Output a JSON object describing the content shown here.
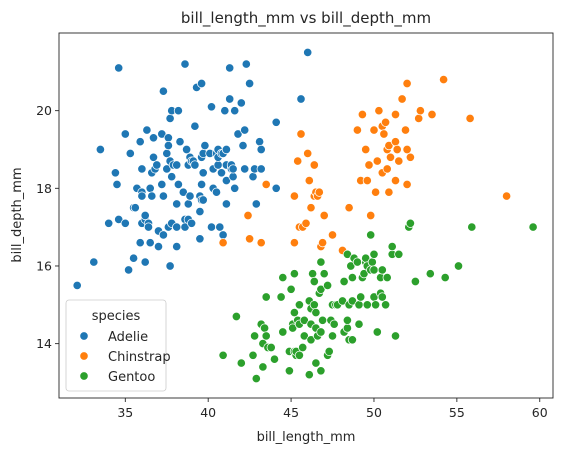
{
  "chart_data": {
    "type": "scatter",
    "title": "bill_length_mm vs bill_depth_mm",
    "xlabel": "bill_length_mm",
    "ylabel": "bill_depth_mm",
    "xlim": [
      31.0,
      60.8
    ],
    "ylim": [
      12.6,
      22.0
    ],
    "xticks": [
      35,
      40,
      45,
      50,
      55,
      60
    ],
    "yticks": [
      14,
      16,
      18,
      20
    ],
    "grid": false,
    "legend": {
      "title": "species",
      "placement": "lower-left"
    },
    "series": [
      {
        "name": "Adelie",
        "color": "#1f77b4",
        "points": [
          [
            32.1,
            15.5
          ],
          [
            33.1,
            16.1
          ],
          [
            33.5,
            19.0
          ],
          [
            34.0,
            17.1
          ],
          [
            34.4,
            18.4
          ],
          [
            34.5,
            18.1
          ],
          [
            34.6,
            21.1
          ],
          [
            34.6,
            17.2
          ],
          [
            35.0,
            17.1
          ],
          [
            35.0,
            19.4
          ],
          [
            35.2,
            15.9
          ],
          [
            35.3,
            18.9
          ],
          [
            35.5,
            17.5
          ],
          [
            35.5,
            16.2
          ],
          [
            35.6,
            17.5
          ],
          [
            35.7,
            18.0
          ],
          [
            35.9,
            16.6
          ],
          [
            35.9,
            19.2
          ],
          [
            36.0,
            17.9
          ],
          [
            36.0,
            17.1
          ],
          [
            36.0,
            18.5
          ],
          [
            36.0,
            17.8
          ],
          [
            36.2,
            16.1
          ],
          [
            36.2,
            17.2
          ],
          [
            36.2,
            17.3
          ],
          [
            36.3,
            19.5
          ],
          [
            36.4,
            17.1
          ],
          [
            36.4,
            17.0
          ],
          [
            36.5,
            16.6
          ],
          [
            36.5,
            18.0
          ],
          [
            36.6,
            17.8
          ],
          [
            36.6,
            18.4
          ],
          [
            36.7,
            18.8
          ],
          [
            36.7,
            19.3
          ],
          [
            36.8,
            18.5
          ],
          [
            36.9,
            18.6
          ],
          [
            37.0,
            16.9
          ],
          [
            37.0,
            16.5
          ],
          [
            37.2,
            18.1
          ],
          [
            37.2,
            19.4
          ],
          [
            37.3,
            20.5
          ],
          [
            37.3,
            17.8
          ],
          [
            37.3,
            16.8
          ],
          [
            37.5,
            18.9
          ],
          [
            37.5,
            18.5
          ],
          [
            37.6,
            19.3
          ],
          [
            37.6,
            17.0
          ],
          [
            37.6,
            19.1
          ],
          [
            37.7,
            18.7
          ],
          [
            37.7,
            16.0
          ],
          [
            37.7,
            19.8
          ],
          [
            37.8,
            18.3
          ],
          [
            37.8,
            17.1
          ],
          [
            37.8,
            20.0
          ],
          [
            37.9,
            18.6
          ],
          [
            38.1,
            18.6
          ],
          [
            38.1,
            17.6
          ],
          [
            38.1,
            17.0
          ],
          [
            38.1,
            16.5
          ],
          [
            38.2,
            18.1
          ],
          [
            38.2,
            20.0
          ],
          [
            38.3,
            19.2
          ],
          [
            38.5,
            17.9
          ],
          [
            38.6,
            21.2
          ],
          [
            38.6,
            17.2
          ],
          [
            38.6,
            17.0
          ],
          [
            38.7,
            19.0
          ],
          [
            38.8,
            17.2
          ],
          [
            38.8,
            18.6
          ],
          [
            38.8,
            17.6
          ],
          [
            38.9,
            18.8
          ],
          [
            38.9,
            17.8
          ],
          [
            39.0,
            17.1
          ],
          [
            39.0,
            18.7
          ],
          [
            39.1,
            18.7
          ],
          [
            39.2,
            19.6
          ],
          [
            39.2,
            18.6
          ],
          [
            39.3,
            20.6
          ],
          [
            39.5,
            17.4
          ],
          [
            39.5,
            16.7
          ],
          [
            39.5,
            17.8
          ],
          [
            39.6,
            18.8
          ],
          [
            39.6,
            17.7
          ],
          [
            39.6,
            18.1
          ],
          [
            39.6,
            20.7
          ],
          [
            39.7,
            18.4
          ],
          [
            39.7,
            17.7
          ],
          [
            39.7,
            18.9
          ],
          [
            39.8,
            19.1
          ],
          [
            40.1,
            18.9
          ],
          [
            40.2,
            17.0
          ],
          [
            40.2,
            20.1
          ],
          [
            40.3,
            18.0
          ],
          [
            40.3,
            18.5
          ],
          [
            40.5,
            17.9
          ],
          [
            40.5,
            18.9
          ],
          [
            40.6,
            18.6
          ],
          [
            40.6,
            19.0
          ],
          [
            40.6,
            18.8
          ],
          [
            40.7,
            17.0
          ],
          [
            40.8,
            18.4
          ],
          [
            40.8,
            18.9
          ],
          [
            40.9,
            16.8
          ],
          [
            40.9,
            18.9
          ],
          [
            41.0,
            20.0
          ],
          [
            41.1,
            17.6
          ],
          [
            41.1,
            19.0
          ],
          [
            41.1,
            18.2
          ],
          [
            41.1,
            18.6
          ],
          [
            41.3,
            20.3
          ],
          [
            41.3,
            21.1
          ],
          [
            41.4,
            18.5
          ],
          [
            41.4,
            18.6
          ],
          [
            41.5,
            18.3
          ],
          [
            41.5,
            18.5
          ],
          [
            41.6,
            18.0
          ],
          [
            41.6,
            20.0
          ],
          [
            41.8,
            19.4
          ],
          [
            42.0,
            20.2
          ],
          [
            42.1,
            19.1
          ],
          [
            42.2,
            18.5
          ],
          [
            42.2,
            19.5
          ],
          [
            42.3,
            21.2
          ],
          [
            42.5,
            20.7
          ],
          [
            42.7,
            18.3
          ],
          [
            42.8,
            18.5
          ],
          [
            42.9,
            17.6
          ],
          [
            43.1,
            19.2
          ],
          [
            43.2,
            18.5
          ],
          [
            43.2,
            19.0
          ],
          [
            44.1,
            19.7
          ],
          [
            44.1,
            18.0
          ],
          [
            45.6,
            20.3
          ],
          [
            46.0,
            21.5
          ]
        ]
      },
      {
        "name": "Chinstrap",
        "color": "#ff7f0e",
        "points": [
          [
            40.9,
            16.6
          ],
          [
            42.4,
            17.3
          ],
          [
            42.5,
            16.7
          ],
          [
            43.2,
            16.6
          ],
          [
            43.5,
            18.1
          ],
          [
            45.2,
            17.8
          ],
          [
            45.2,
            16.6
          ],
          [
            45.4,
            18.7
          ],
          [
            45.5,
            17.0
          ],
          [
            45.6,
            19.4
          ],
          [
            45.7,
            17.0
          ],
          [
            45.9,
            17.1
          ],
          [
            46.0,
            18.9
          ],
          [
            46.1,
            18.2
          ],
          [
            46.2,
            17.5
          ],
          [
            46.4,
            18.6
          ],
          [
            46.4,
            17.8
          ],
          [
            46.5,
            17.9
          ],
          [
            46.6,
            17.8
          ],
          [
            46.7,
            17.9
          ],
          [
            46.8,
            16.5
          ],
          [
            46.9,
            16.6
          ],
          [
            47.0,
            17.3
          ],
          [
            47.5,
            16.8
          ],
          [
            48.1,
            16.4
          ],
          [
            48.5,
            17.5
          ],
          [
            49.0,
            19.5
          ],
          [
            49.2,
            18.2
          ],
          [
            49.3,
            19.9
          ],
          [
            49.5,
            19.0
          ],
          [
            49.6,
            18.2
          ],
          [
            49.7,
            18.6
          ],
          [
            49.8,
            17.3
          ],
          [
            50.0,
            19.5
          ],
          [
            50.1,
            17.9
          ],
          [
            50.2,
            18.7
          ],
          [
            50.3,
            20.0
          ],
          [
            50.5,
            18.4
          ],
          [
            50.5,
            19.6
          ],
          [
            50.6,
            19.4
          ],
          [
            50.7,
            19.7
          ],
          [
            50.8,
            18.5
          ],
          [
            50.8,
            19.0
          ],
          [
            50.9,
            19.1
          ],
          [
            50.9,
            17.9
          ],
          [
            51.0,
            18.8
          ],
          [
            51.3,
            19.2
          ],
          [
            51.3,
            18.2
          ],
          [
            51.3,
            19.9
          ],
          [
            51.4,
            19.0
          ],
          [
            51.5,
            18.7
          ],
          [
            51.7,
            20.3
          ],
          [
            51.9,
            19.5
          ],
          [
            52.0,
            18.1
          ],
          [
            52.0,
            19.0
          ],
          [
            52.0,
            20.7
          ],
          [
            52.2,
            18.8
          ],
          [
            52.7,
            19.8
          ],
          [
            52.8,
            20.0
          ],
          [
            53.5,
            19.9
          ],
          [
            54.2,
            20.8
          ],
          [
            55.8,
            19.8
          ],
          [
            58.0,
            17.8
          ]
        ]
      },
      {
        "name": "Gentoo",
        "color": "#2ca02c",
        "points": [
          [
            40.9,
            13.7
          ],
          [
            41.7,
            14.7
          ],
          [
            42.0,
            13.5
          ],
          [
            42.7,
            13.7
          ],
          [
            42.8,
            14.2
          ],
          [
            42.9,
            13.1
          ],
          [
            43.2,
            14.5
          ],
          [
            43.3,
            13.4
          ],
          [
            43.3,
            14.0
          ],
          [
            43.4,
            14.4
          ],
          [
            43.5,
            14.2
          ],
          [
            43.5,
            15.2
          ],
          [
            43.6,
            13.9
          ],
          [
            43.8,
            13.9
          ],
          [
            44.0,
            13.6
          ],
          [
            44.4,
            15.2
          ],
          [
            44.5,
            14.3
          ],
          [
            44.5,
            15.7
          ],
          [
            44.9,
            13.8
          ],
          [
            44.9,
            13.3
          ],
          [
            45.0,
            15.4
          ],
          [
            45.1,
            14.5
          ],
          [
            45.1,
            14.4
          ],
          [
            45.2,
            13.8
          ],
          [
            45.2,
            14.8
          ],
          [
            45.2,
            15.8
          ],
          [
            45.3,
            13.7
          ],
          [
            45.3,
            13.8
          ],
          [
            45.4,
            14.6
          ],
          [
            45.5,
            13.7
          ],
          [
            45.5,
            14.5
          ],
          [
            45.5,
            15.0
          ],
          [
            45.7,
            13.9
          ],
          [
            45.8,
            14.2
          ],
          [
            45.8,
            14.6
          ],
          [
            46.1,
            13.2
          ],
          [
            46.1,
            15.1
          ],
          [
            46.2,
            14.5
          ],
          [
            46.2,
            14.1
          ],
          [
            46.2,
            14.9
          ],
          [
            46.3,
            15.8
          ],
          [
            46.4,
            15.0
          ],
          [
            46.4,
            15.6
          ],
          [
            46.5,
            13.5
          ],
          [
            46.5,
            14.4
          ],
          [
            46.5,
            14.8
          ],
          [
            46.6,
            14.2
          ],
          [
            46.7,
            15.3
          ],
          [
            46.8,
            13.3
          ],
          [
            46.8,
            14.3
          ],
          [
            46.8,
            15.4
          ],
          [
            46.8,
            16.1
          ],
          [
            46.9,
            14.6
          ],
          [
            47.0,
            15.8
          ],
          [
            47.2,
            13.7
          ],
          [
            47.2,
            15.5
          ],
          [
            47.3,
            13.8
          ],
          [
            47.4,
            14.6
          ],
          [
            47.5,
            14.2
          ],
          [
            47.5,
            15.0
          ],
          [
            47.6,
            14.5
          ],
          [
            47.7,
            15.0
          ],
          [
            47.8,
            15.0
          ],
          [
            48.1,
            15.1
          ],
          [
            48.2,
            14.3
          ],
          [
            48.2,
            15.6
          ],
          [
            48.4,
            14.4
          ],
          [
            48.4,
            14.6
          ],
          [
            48.4,
            16.3
          ],
          [
            48.5,
            14.1
          ],
          [
            48.5,
            15.0
          ],
          [
            48.6,
            16.0
          ],
          [
            48.7,
            14.1
          ],
          [
            48.7,
            15.1
          ],
          [
            48.7,
            15.7
          ],
          [
            48.8,
            16.2
          ],
          [
            49.0,
            16.1
          ],
          [
            49.1,
            14.5
          ],
          [
            49.1,
            15.0
          ],
          [
            49.2,
            15.2
          ],
          [
            49.3,
            15.7
          ],
          [
            49.4,
            15.8
          ],
          [
            49.5,
            16.1
          ],
          [
            49.5,
            16.2
          ],
          [
            49.6,
            15.0
          ],
          [
            49.6,
            16.0
          ],
          [
            49.8,
            15.9
          ],
          [
            49.8,
            16.8
          ],
          [
            49.9,
            16.1
          ],
          [
            50.0,
            15.2
          ],
          [
            50.0,
            15.9
          ],
          [
            50.0,
            16.3
          ],
          [
            50.1,
            15.0
          ],
          [
            50.2,
            14.3
          ],
          [
            50.4,
            15.3
          ],
          [
            50.4,
            15.7
          ],
          [
            50.5,
            15.2
          ],
          [
            50.5,
            15.9
          ],
          [
            50.7,
            15.0
          ],
          [
            50.8,
            15.7
          ],
          [
            51.1,
            16.3
          ],
          [
            51.1,
            16.5
          ],
          [
            51.3,
            14.2
          ],
          [
            51.5,
            16.3
          ],
          [
            52.1,
            17.0
          ],
          [
            52.2,
            17.1
          ],
          [
            52.5,
            15.6
          ],
          [
            53.4,
            15.8
          ],
          [
            54.3,
            15.7
          ],
          [
            55.1,
            16.0
          ],
          [
            55.9,
            17.0
          ],
          [
            59.6,
            17.0
          ]
        ]
      }
    ]
  }
}
